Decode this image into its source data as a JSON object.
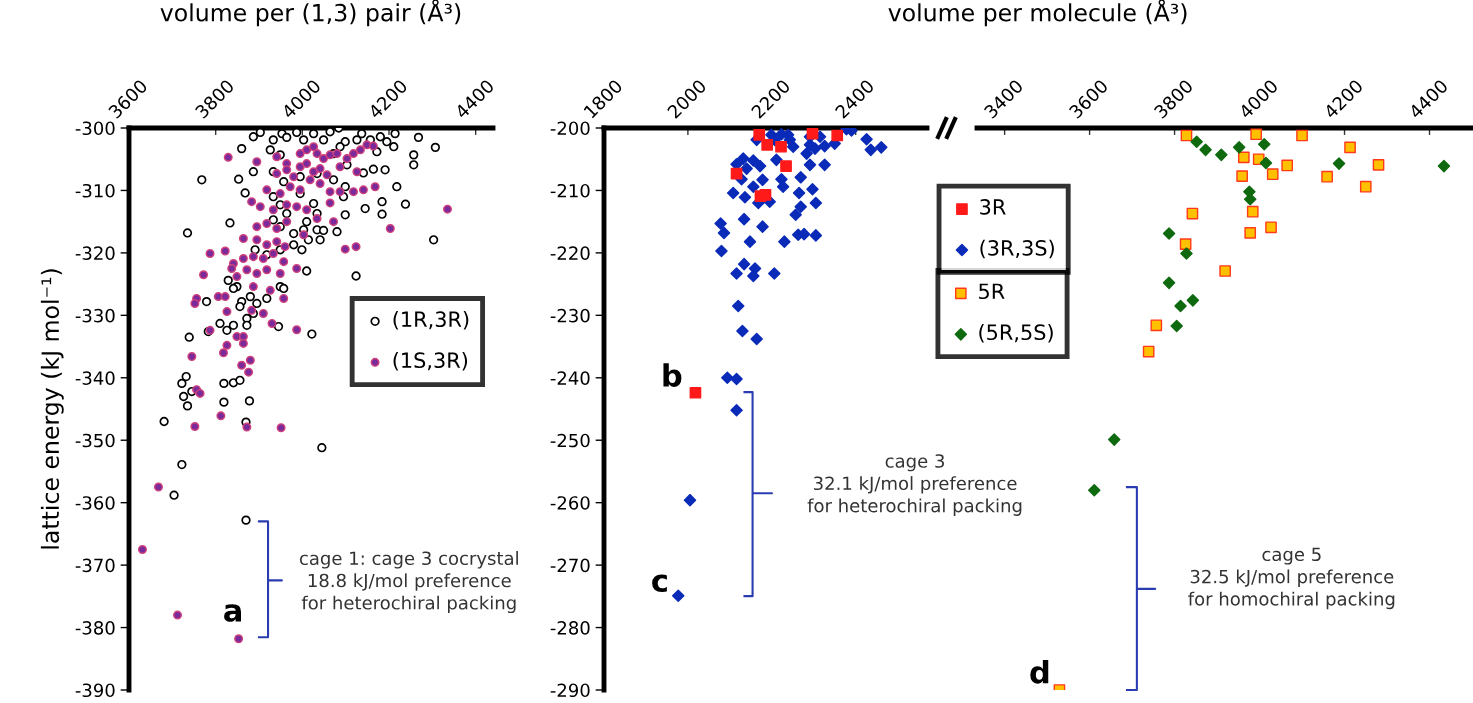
{
  "chart_data": [
    {
      "type": "scatter",
      "xlabel": "volume per (1,3) pair (Å³)",
      "ylabel": "lattice energy (kJ mol⁻¹)",
      "xlim": [
        3600,
        4440
      ],
      "xticks": [
        3600,
        3800,
        4000,
        4200,
        4400
      ],
      "ylim": [
        -390,
        -300
      ],
      "yticks": [
        -300,
        -310,
        -320,
        -330,
        -340,
        -350,
        -360,
        -370,
        -380,
        -390
      ],
      "legend": "right",
      "series": [
        {
          "name": "(1R,3R)",
          "color": "#000000",
          "marker": "circle",
          "x": [
            3887,
            3903,
            3933,
            3953,
            3964,
            3987,
            4003,
            4026,
            4049,
            4064,
            4084,
            4099,
            4126,
            4137,
            4157,
            4180,
            4195,
            4214,
            4268,
            4307,
            4211,
            3860,
            3926,
            3949,
            4072,
            4087,
            4257,
            4257,
            4172,
            4103,
            4141,
            4164,
            4191,
            4218,
            4099,
            4095,
            4184,
            4238,
            4145,
            4184,
            4099,
            3768,
            3853,
            3868,
            3887,
            3933,
            3957,
            3995,
            4034,
            4072,
            3933,
            3949,
            3964,
            3995,
            4026,
            4034,
            4010,
            3933,
            3949,
            3980,
            4003,
            4034,
            4049,
            4080,
            4041,
            4014,
            3980,
            3999,
            3833,
            3735,
            4303,
            3891,
            3918,
            3949,
            4010,
            4124,
            3829,
            3849,
            3841,
            3949,
            3957,
            3779,
            3860,
            3856,
            3880,
            3918,
            3895,
            3872,
            3887,
            3810,
            3826,
            3841,
            3872,
            3945,
            4022,
            3739,
            3783,
            3732,
            3722,
            3726,
            3735,
            3745,
            3819,
            3841,
            3856,
            3819,
            3878,
            3681,
            3870,
            4045,
            3722,
            3704,
            3870
          ],
          "values": [
            -301.4,
            -300.7,
            -301.9,
            -300.9,
            -301.5,
            -300.7,
            -301.9,
            -300.9,
            -301.9,
            -300.6,
            -300.0,
            -302.2,
            -301.9,
            -300.9,
            -301.9,
            -301.4,
            -302.2,
            -300.9,
            -301.5,
            -303.1,
            -303.0,
            -303.3,
            -303.5,
            -304.3,
            -304.1,
            -303.0,
            -304.3,
            -305.9,
            -303.8,
            -305.9,
            -307.2,
            -306.6,
            -306.7,
            -309.4,
            -309.4,
            -311.0,
            -311.8,
            -312.2,
            -312.9,
            -313.8,
            -313.9,
            -308.3,
            -308.2,
            -310.4,
            -307.0,
            -307.0,
            -308.6,
            -307.8,
            -307.3,
            -308.3,
            -311.0,
            -312.3,
            -313.7,
            -310.5,
            -312.1,
            -313.7,
            -315.0,
            -314.7,
            -315.8,
            -316.9,
            -316.3,
            -316.3,
            -316.4,
            -316.6,
            -317.9,
            -317.9,
            -318.7,
            -319.5,
            -315.2,
            -316.8,
            -317.9,
            -319.5,
            -320.3,
            -319.5,
            -322.9,
            -323.7,
            -324.4,
            -325.4,
            -325.7,
            -325.4,
            -325.7,
            -327.8,
            -327.8,
            -328.6,
            -327.0,
            -327.3,
            -328.1,
            -330.5,
            -329.7,
            -331.3,
            -332.4,
            -331.6,
            -331.6,
            -331.8,
            -333.0,
            -333.5,
            -332.6,
            -339.8,
            -340.9,
            -343.0,
            -344.5,
            -342.2,
            -340.9,
            -340.8,
            -340.4,
            -343.9,
            -343.7,
            -347.0,
            -347.1,
            -351.2,
            -353.9,
            -358.8,
            -362.8
          ]
        },
        {
          "name": "(1S,3R)",
          "color": "#7a2a9a",
          "marker": "circle",
          "x": [
            3829,
            3895,
            3941,
            3964,
            3995,
            4010,
            4026,
            4034,
            4049,
            4064,
            4080,
            4103,
            4118,
            4134,
            4149,
            4164,
            3941,
            3964,
            3980,
            3995,
            4010,
            4026,
            4041,
            4057,
            4087,
            4126,
            3918,
            3949,
            3972,
            3995,
            4018,
            4041,
            4064,
            4087,
            4118,
            4141,
            4168,
            4335,
            3883,
            3903,
            3933,
            3964,
            3987,
            4010,
            4034,
            4064,
            4072,
            4203,
            3895,
            3918,
            3941,
            3964,
            4003,
            4099,
            4124,
            3864,
            3895,
            3918,
            3941,
            3960,
            3787,
            3822,
            3841,
            3864,
            3887,
            3910,
            3933,
            3957,
            3987,
            3772,
            3837,
            3849,
            3872,
            3895,
            3918,
            3949,
            3887,
            3926,
            3957,
            3756,
            3752,
            3806,
            3822,
            3826,
            3883,
            3910,
            3930,
            3787,
            3849,
            3864,
            3987,
            3826,
            3864,
            3745,
            3880,
            3860,
            3818,
            3876,
            3756,
            3764,
            3752,
            3812,
            3872,
            3951,
            3668,
            3631,
            3712,
            3853
          ],
          "values": [
            -304.7,
            -305.4,
            -304.6,
            -305.7,
            -304.1,
            -303.5,
            -303.0,
            -304.1,
            -304.9,
            -304.3,
            -304.1,
            -304.9,
            -304.1,
            -303.5,
            -302.7,
            -302.9,
            -307.3,
            -306.7,
            -307.8,
            -306.2,
            -305.7,
            -307.0,
            -306.5,
            -307.5,
            -306.2,
            -307.0,
            -309.9,
            -310.5,
            -309.4,
            -309.9,
            -308.3,
            -308.9,
            -310.2,
            -310.2,
            -310.2,
            -309.9,
            -309.4,
            -313.0,
            -311.8,
            -312.6,
            -313.1,
            -312.3,
            -312.6,
            -313.1,
            -314.5,
            -312.0,
            -315.0,
            -316.1,
            -315.8,
            -315.3,
            -316.1,
            -315.0,
            -317.1,
            -319.4,
            -319.0,
            -317.7,
            -317.9,
            -318.7,
            -318.2,
            -319.0,
            -320.1,
            -319.7,
            -321.7,
            -320.9,
            -320.6,
            -320.9,
            -320.1,
            -321.4,
            -322.5,
            -323.5,
            -322.5,
            -323.8,
            -322.7,
            -323.3,
            -322.7,
            -323.3,
            -325.4,
            -326.0,
            -327.3,
            -327.3,
            -328.1,
            -327.0,
            -327.0,
            -329.4,
            -329.2,
            -329.7,
            -331.3,
            -332.4,
            -333.4,
            -333.4,
            -332.3,
            -334.8,
            -334.5,
            -336.6,
            -337.2,
            -338.0,
            -336.0,
            -339.1,
            -341.9,
            -342.5,
            -347.8,
            -346.1,
            -347.9,
            -348.0,
            -357.5,
            -367.5,
            -378.0,
            -381.8
          ]
        }
      ],
      "annotations": [
        "a",
        "cage 1: cage 3 cocrystal\n18.8 kJ/mol preference\nfor heterochiral packing"
      ]
    },
    {
      "type": "scatter",
      "xlabel": "volume per molecule (Å³)",
      "xlim": [
        1800,
        2570
      ],
      "xticks": [
        1800,
        2000,
        2200,
        2400
      ],
      "ylim": [
        -290,
        -200
      ],
      "yticks": [
        -200,
        -210,
        -220,
        -230,
        -240,
        -250,
        -260,
        -270,
        -280,
        -290
      ],
      "legend": "right",
      "series": [
        {
          "name": "3R",
          "color": "#ff1a1a",
          "marker": "square",
          "x": [
            2170,
            2189,
            2222,
            2234,
            2116,
            2173,
            2185,
            2297,
            2356,
            2018
          ],
          "values": [
            -201.1,
            -202.7,
            -203.0,
            -206.1,
            -207.3,
            -210.9,
            -210.7,
            -200.9,
            -201.2,
            -242.4
          ]
        },
        {
          "name": "(3R,3S)",
          "color": "#0a2ab8",
          "marker": "diamond",
          "x": [
            2199,
            2223,
            2239,
            2243,
            2207,
            2164,
            2251,
            2291,
            2315,
            2291,
            2283,
            2303,
            2326,
            2350,
            2378,
            2390,
            2426,
            2436,
            2461,
            2132,
            2116,
            2156,
            2140,
            2172,
            2128,
            2156,
            2178,
            2211,
            2223,
            2227,
            2269,
            2291,
            2326,
            2108,
            2136,
            2168,
            2195,
            2265,
            2297,
            2305,
            2269,
            2257,
            2134,
            2178,
            2078,
            2086,
            2080,
            2148,
            2230,
            2263,
            2277,
            2305,
            2134,
            2116,
            2160,
            2156,
            2206,
            2120,
            2130,
            2164,
            2094,
            2116,
            2116,
            2005,
            1977
          ],
          "values": [
            -201.1,
            -201.0,
            -201.1,
            -201.9,
            -201.9,
            -201.9,
            -203.0,
            -201.4,
            -201.4,
            -202.7,
            -204.1,
            -203.3,
            -202.9,
            -202.5,
            -200.2,
            -200.4,
            -201.8,
            -203.5,
            -203.1,
            -204.9,
            -205.8,
            -205.2,
            -206.5,
            -206.1,
            -208.2,
            -209.4,
            -208.3,
            -205.1,
            -208.2,
            -209.4,
            -207.9,
            -205.9,
            -205.9,
            -210.4,
            -211.1,
            -212.0,
            -211.8,
            -210.4,
            -209.8,
            -212.0,
            -212.6,
            -213.9,
            -214.6,
            -215.8,
            -215.3,
            -216.8,
            -219.7,
            -218.2,
            -218.2,
            -217.1,
            -217.0,
            -217.2,
            -221.8,
            -223.3,
            -222.5,
            -223.7,
            -223.3,
            -228.5,
            -232.5,
            -233.8,
            -240.0,
            -240.2,
            -245.2,
            -259.6,
            -274.9
          ]
        }
      ],
      "annotations": [
        "b",
        "c",
        "cage 3\n32.1 kJ/mol preference\nfor heterochiral packing"
      ]
    },
    {
      "type": "scatter",
      "xlim": [
        3335,
        4500
      ],
      "xticks": [
        3400,
        3600,
        3800,
        4000,
        4200,
        4400
      ],
      "ylim": [
        -290,
        -200
      ],
      "tick_labels": "x",
      "legend": "top left",
      "series": [
        {
          "name": "5R",
          "color": "#ffc000",
          "marker": "square",
          "x": [
            3828,
            3992,
            4100,
            4213,
            3963,
            3998,
            3959,
            4031,
            4065,
            4159,
            4280,
            4250,
            3842,
            3984,
            4027,
            3978,
            3826,
            3919,
            3757,
            3739,
            3529
          ],
          "values": [
            -201.2,
            -201.0,
            -201.2,
            -203.1,
            -204.7,
            -205.0,
            -207.7,
            -207.4,
            -206.0,
            -207.8,
            -205.9,
            -209.4,
            -213.7,
            -213.4,
            -215.9,
            -216.8,
            -218.6,
            -222.9,
            -231.6,
            -235.8,
            -290.0
          ]
        },
        {
          "name": "(5R,5S)",
          "color": "#0f6a0f",
          "marker": "diamond",
          "x": [
            3852,
            3873,
            3910,
            3952,
            4011,
            4015,
            3976,
            3978,
            4187,
            4434,
            3787,
            3828,
            3787,
            3814,
            3843,
            3805,
            3658,
            3611
          ],
          "values": [
            -202.2,
            -203.5,
            -204.3,
            -203.1,
            -202.6,
            -205.6,
            -210.2,
            -211.4,
            -205.7,
            -206.1,
            -216.9,
            -220.1,
            -224.8,
            -228.5,
            -227.6,
            -231.7,
            -249.9,
            -258.0
          ]
        }
      ],
      "annotations": [
        "d",
        "cage 5\n32.5 kJ/mol preference\nfor homochiral packing"
      ]
    }
  ]
}
